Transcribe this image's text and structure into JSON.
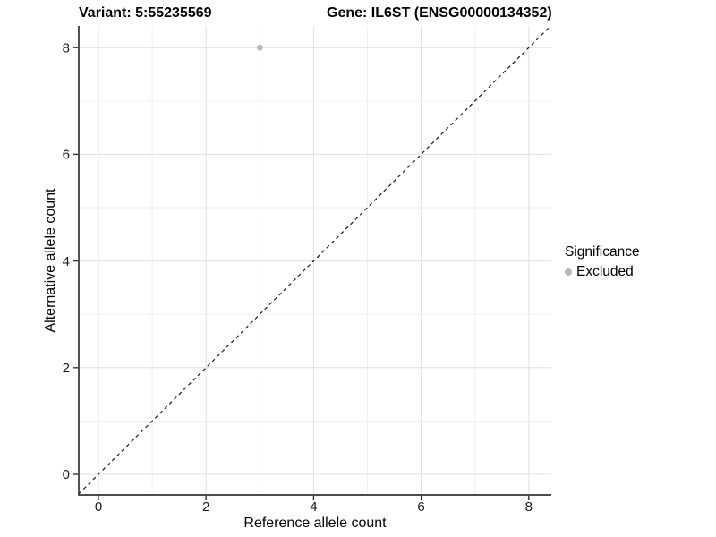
{
  "header": {
    "variant_title": "Variant: 5:55235569",
    "gene_title": "Gene: IL6ST (ENSG00000134352)"
  },
  "axes": {
    "x_label": "Reference allele count",
    "y_label": "Alternative allele count",
    "x_tick_labels": [
      "0",
      "2",
      "4",
      "6",
      "8"
    ],
    "y_tick_labels": [
      "0",
      "2",
      "4",
      "6",
      "8"
    ]
  },
  "legend": {
    "title": "Significance",
    "items": [
      {
        "label": "Excluded",
        "color": "#b8b8b8"
      }
    ]
  },
  "colors": {
    "background": "#ffffff",
    "grid_major": "#e0e0e0",
    "grid_minor": "#efefef",
    "axis_line": "#333333",
    "tick_mark": "#333333",
    "tick_text": "#1a1a1a",
    "point": "#b8b8b8",
    "reference_line": "#1a1a1a"
  },
  "chart_data": {
    "type": "scatter",
    "title": "Variant: 5:55235569 | Gene: IL6ST (ENSG00000134352)",
    "xlabel": "Reference allele count",
    "ylabel": "Alternative allele count",
    "xlim": [
      -0.4,
      8.4
    ],
    "ylim": [
      -0.4,
      8.4
    ],
    "x_major_ticks": [
      0,
      2,
      4,
      6,
      8
    ],
    "x_minor_ticks": [
      1,
      3,
      5,
      7
    ],
    "y_major_ticks": [
      0,
      2,
      4,
      6,
      8
    ],
    "y_minor_ticks": [
      1,
      3,
      5,
      7
    ],
    "grid": "major+minor",
    "legend_position": "right",
    "legend_title": "Significance",
    "series": [
      {
        "name": "Excluded",
        "color": "#b8b8b8",
        "points": [
          {
            "x": 3,
            "y": 8
          }
        ]
      }
    ],
    "reference_line": {
      "equation": "y = x",
      "style": "dashed",
      "color": "#1a1a1a"
    }
  }
}
